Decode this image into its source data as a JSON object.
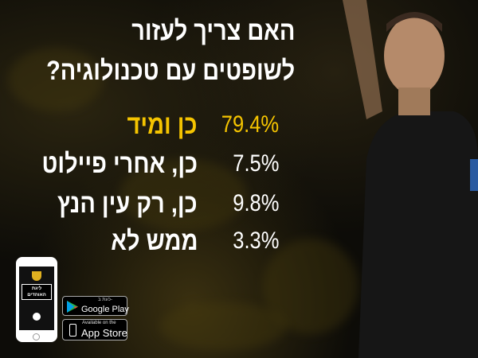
{
  "title": {
    "line1": "האם צריך לעזור",
    "line2": "לשופטים עם טכנולוגיה?"
  },
  "results": [
    {
      "label": "כן ומיד",
      "percent": "79.4%",
      "highlight": true
    },
    {
      "label": "כן, אחרי פיילוט",
      "percent": "7.5%"
    },
    {
      "label": "כן, רק עין הנץ",
      "percent": "9.8%"
    },
    {
      "label": "ממש לא",
      "percent": "3.3%"
    }
  ],
  "app": {
    "logo_text_line1": "ליגת",
    "logo_text_line2": "האוהדים"
  },
  "google_play": {
    "small": "כעת ב-",
    "big": "Google Play"
  },
  "app_store": {
    "small": "Available on the",
    "big": "App Store"
  },
  "colors": {
    "highlight": "#f5c400",
    "background": "#0d0c08"
  }
}
